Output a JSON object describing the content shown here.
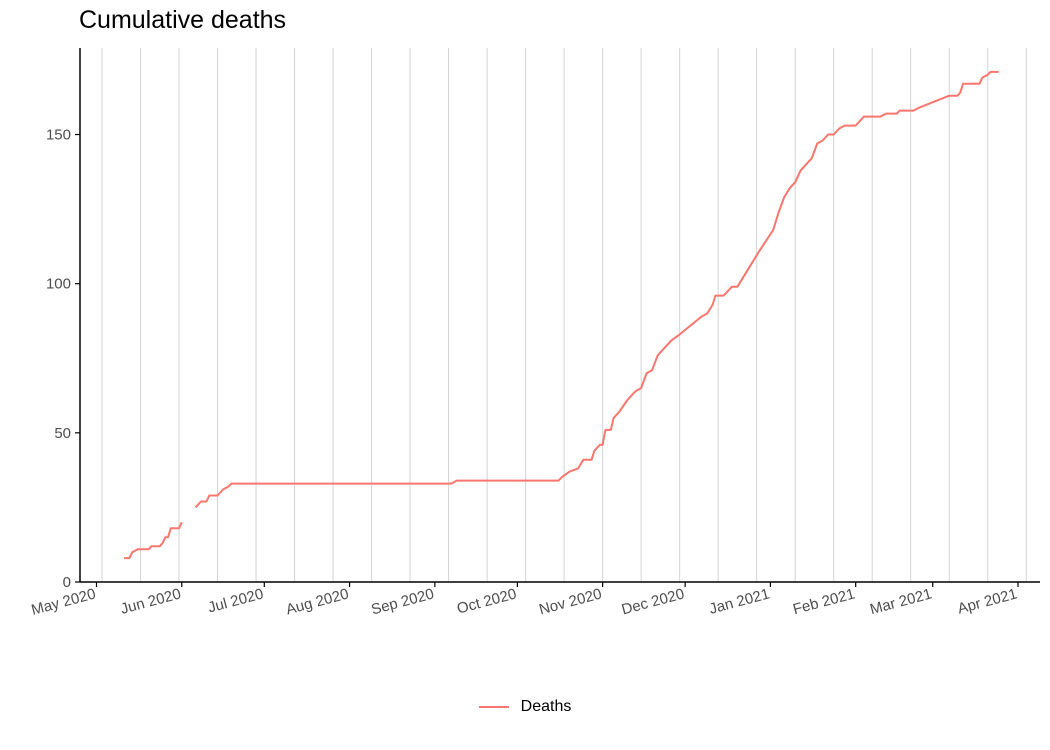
{
  "chart_data": {
    "type": "line",
    "title": "Cumulative deaths",
    "xlabel": "",
    "ylabel": "",
    "y_ticks": [
      0,
      50,
      100,
      150
    ],
    "ylim": [
      0,
      179
    ],
    "xlim": [
      "2020-04-25",
      "2021-04-09"
    ],
    "x_ticks": [
      {
        "date": "2020-05-01",
        "label": "May 2020"
      },
      {
        "date": "2020-06-01",
        "label": "Jun 2020"
      },
      {
        "date": "2020-07-01",
        "label": "Jul 2020"
      },
      {
        "date": "2020-08-01",
        "label": "Aug 2020"
      },
      {
        "date": "2020-09-01",
        "label": "Sep 2020"
      },
      {
        "date": "2020-10-01",
        "label": "Oct 2020"
      },
      {
        "date": "2020-11-01",
        "label": "Nov 2020"
      },
      {
        "date": "2020-12-01",
        "label": "Dec 2020"
      },
      {
        "date": "2021-01-01",
        "label": "Jan 2021"
      },
      {
        "date": "2021-02-01",
        "label": "Feb 2021"
      },
      {
        "date": "2021-03-01",
        "label": "Mar 2021"
      },
      {
        "date": "2021-04-01",
        "label": "Apr 2021"
      }
    ],
    "vertical_grid_dates": [
      "2020-05-03",
      "2020-05-17",
      "2020-05-31",
      "2020-06-14",
      "2020-06-28",
      "2020-07-12",
      "2020-07-26",
      "2020-08-09",
      "2020-08-23",
      "2020-09-06",
      "2020-09-20",
      "2020-10-04",
      "2020-10-18",
      "2020-11-01",
      "2020-11-15",
      "2020-11-29",
      "2020-12-13",
      "2020-12-27",
      "2021-01-10",
      "2021-01-24",
      "2021-02-07",
      "2021-02-21",
      "2021-03-07",
      "2021-03-21",
      "2021-04-04"
    ],
    "grid": {
      "vertical": true,
      "horizontal": false
    },
    "legend_position": "bottom",
    "series": [
      {
        "name": "Deaths",
        "color": "#F8766D",
        "segments": [
          [
            [
              "2020-05-11",
              8
            ],
            [
              "2020-05-13",
              8
            ],
            [
              "2020-05-14",
              10
            ],
            [
              "2020-05-16",
              11
            ],
            [
              "2020-05-20",
              11
            ],
            [
              "2020-05-21",
              12
            ],
            [
              "2020-05-24",
              12
            ],
            [
              "2020-05-25",
              13
            ],
            [
              "2020-05-26",
              15
            ],
            [
              "2020-05-27",
              15
            ],
            [
              "2020-05-28",
              18
            ],
            [
              "2020-05-31",
              18
            ],
            [
              "2020-06-01",
              20
            ]
          ],
          [
            [
              "2020-06-06",
              25
            ],
            [
              "2020-06-08",
              27
            ],
            [
              "2020-06-10",
              27
            ],
            [
              "2020-06-11",
              29
            ],
            [
              "2020-06-14",
              29
            ],
            [
              "2020-06-16",
              31
            ],
            [
              "2020-06-18",
              32
            ],
            [
              "2020-06-19",
              33
            ],
            [
              "2020-06-30",
              33
            ],
            [
              "2020-08-01",
              33
            ],
            [
              "2020-09-01",
              33
            ],
            [
              "2020-09-07",
              33
            ],
            [
              "2020-09-09",
              34
            ],
            [
              "2020-10-01",
              34
            ],
            [
              "2020-10-16",
              34
            ],
            [
              "2020-10-17",
              35
            ],
            [
              "2020-10-20",
              37
            ],
            [
              "2020-10-23",
              38
            ],
            [
              "2020-10-25",
              41
            ],
            [
              "2020-10-28",
              41
            ],
            [
              "2020-10-29",
              44
            ],
            [
              "2020-10-31",
              46
            ],
            [
              "2020-11-01",
              46
            ],
            [
              "2020-11-02",
              51
            ],
            [
              "2020-11-04",
              51
            ],
            [
              "2020-11-05",
              55
            ],
            [
              "2020-11-07",
              57
            ],
            [
              "2020-11-10",
              61
            ],
            [
              "2020-11-13",
              64
            ],
            [
              "2020-11-15",
              65
            ],
            [
              "2020-11-17",
              70
            ],
            [
              "2020-11-19",
              71
            ],
            [
              "2020-11-21",
              76
            ],
            [
              "2020-11-23",
              78
            ],
            [
              "2020-11-26",
              81
            ],
            [
              "2020-11-29",
              83
            ],
            [
              "2020-12-03",
              86
            ],
            [
              "2020-12-07",
              89
            ],
            [
              "2020-12-09",
              90
            ],
            [
              "2020-12-11",
              93
            ],
            [
              "2020-12-12",
              96
            ],
            [
              "2020-12-15",
              96
            ],
            [
              "2020-12-18",
              99
            ],
            [
              "2020-12-20",
              99
            ],
            [
              "2020-12-24",
              105
            ],
            [
              "2020-12-28",
              111
            ],
            [
              "2021-01-02",
              118
            ],
            [
              "2021-01-04",
              124
            ],
            [
              "2021-01-06",
              129
            ],
            [
              "2021-01-08",
              132
            ],
            [
              "2021-01-10",
              134
            ],
            [
              "2021-01-12",
              138
            ],
            [
              "2021-01-14",
              140
            ],
            [
              "2021-01-16",
              142
            ],
            [
              "2021-01-18",
              147
            ],
            [
              "2021-01-20",
              148
            ],
            [
              "2021-01-22",
              150
            ],
            [
              "2021-01-24",
              150
            ],
            [
              "2021-01-26",
              152
            ],
            [
              "2021-01-28",
              153
            ],
            [
              "2021-02-01",
              153
            ],
            [
              "2021-02-04",
              156
            ],
            [
              "2021-02-10",
              156
            ],
            [
              "2021-02-12",
              157
            ],
            [
              "2021-02-16",
              157
            ],
            [
              "2021-02-17",
              158
            ],
            [
              "2021-02-22",
              158
            ],
            [
              "2021-02-24",
              159
            ],
            [
              "2021-03-07",
              163
            ],
            [
              "2021-03-10",
              163
            ],
            [
              "2021-03-11",
              164
            ],
            [
              "2021-03-12",
              167
            ],
            [
              "2021-03-18",
              167
            ],
            [
              "2021-03-19",
              169
            ],
            [
              "2021-03-21",
              170
            ],
            [
              "2021-03-22",
              171
            ],
            [
              "2021-03-25",
              171
            ]
          ]
        ]
      }
    ]
  }
}
